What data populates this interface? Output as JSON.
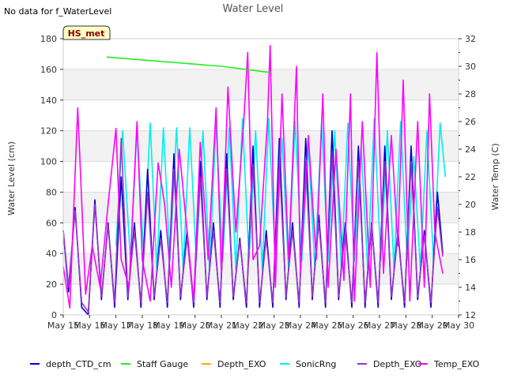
{
  "chart_data": {
    "type": "line",
    "title": "Water Level",
    "no_data_note": "No data for f_WaterLevel",
    "station_badge": "HS_met",
    "ylabel_left": "Water Level (cm)",
    "ylabel_right": "Water Temp (C)",
    "ylim_left": [
      0,
      180
    ],
    "ylim_right": [
      12,
      32
    ],
    "y_ticks_left": [
      "0",
      "20",
      "40",
      "60",
      "80",
      "100",
      "120",
      "140",
      "160",
      "180"
    ],
    "y_ticks_right": [
      "12",
      "14",
      "16",
      "18",
      "20",
      "22",
      "24",
      "26",
      "28",
      "30",
      "32"
    ],
    "x_ticks": [
      "May 15",
      "May 16",
      "May 17",
      "May 18",
      "May 19",
      "May 20",
      "May 21",
      "May 22",
      "May 23",
      "May 24",
      "May 25",
      "May 26",
      "May 27",
      "May 28",
      "May 29",
      "May 30"
    ],
    "xlim_days": [
      0,
      15
    ],
    "series": [
      {
        "name": "depth_CTD_cm",
        "axis": "left",
        "color": "#0000cc",
        "x": [
          0.0,
          0.2,
          0.45,
          0.7,
          0.95,
          1.2,
          1.45,
          1.7,
          1.95,
          2.2,
          2.45,
          2.7,
          2.95,
          3.2,
          3.45,
          3.7,
          3.95,
          4.2,
          4.45,
          4.7,
          4.95,
          5.2,
          5.45,
          5.7,
          5.95,
          6.2,
          6.45,
          6.7,
          6.95,
          7.2,
          7.45,
          7.7,
          7.95,
          8.2,
          8.45,
          8.7,
          8.95,
          9.2,
          9.45,
          9.7,
          9.95,
          10.2,
          10.45,
          10.7,
          10.95,
          11.2,
          11.45,
          11.7,
          11.95,
          12.2,
          12.45,
          12.7,
          12.95,
          13.2,
          13.45,
          13.7,
          13.95,
          14.2,
          14.4
        ],
        "values": [
          55,
          15,
          70,
          5,
          0,
          75,
          10,
          60,
          5,
          90,
          10,
          60,
          5,
          95,
          10,
          55,
          5,
          105,
          10,
          55,
          5,
          100,
          10,
          60,
          5,
          105,
          10,
          50,
          5,
          110,
          5,
          55,
          5,
          115,
          10,
          60,
          5,
          115,
          10,
          65,
          5,
          120,
          10,
          60,
          5,
          110,
          5,
          60,
          5,
          110,
          10,
          55,
          5,
          110,
          10,
          55,
          5,
          80,
          40
        ]
      },
      {
        "name": "Staff Gauge",
        "axis": "left",
        "color": "#22ee22",
        "x": [
          1.65,
          6.0,
          7.85
        ],
        "values": [
          168,
          162,
          158
        ]
      },
      {
        "name": "Depth_EXO",
        "axis": "left",
        "color": "#ffaa00",
        "x": [],
        "values": []
      },
      {
        "name": "SonicRng",
        "axis": "left",
        "color": "#00eeee",
        "x": [
          2.0,
          2.25,
          2.55,
          2.8,
          3.05,
          3.3,
          3.55,
          3.8,
          4.05,
          4.3,
          4.55,
          4.8,
          5.05,
          5.3,
          5.55,
          5.8,
          6.05,
          6.3,
          6.55,
          6.8,
          7.05,
          7.3,
          7.55,
          7.8,
          8.05,
          8.3,
          8.55,
          8.8,
          9.05,
          9.3,
          9.55,
          9.8,
          10.05,
          10.3,
          10.55,
          10.8,
          11.05,
          11.3,
          11.55,
          11.8,
          12.05,
          12.3,
          12.55,
          12.8,
          13.05,
          13.3,
          13.55,
          13.8,
          14.05,
          14.3,
          14.5
        ],
        "values": [
          45,
          120,
          35,
          122,
          40,
          125,
          30,
          122,
          35,
          122,
          30,
          122,
          35,
          120,
          30,
          125,
          35,
          122,
          30,
          128,
          35,
          120,
          30,
          128,
          35,
          115,
          30,
          126,
          35,
          110,
          30,
          126,
          35,
          120,
          30,
          125,
          35,
          110,
          30,
          128,
          35,
          120,
          30,
          126,
          35,
          103,
          30,
          120,
          35,
          125,
          90
        ]
      },
      {
        "name": "Depth_EXO",
        "axis": "left",
        "color": "#9933cc",
        "x": [
          0.0,
          0.2,
          0.45,
          0.7,
          0.95,
          1.2,
          1.45,
          1.7,
          1.95,
          2.2,
          2.45,
          2.7,
          2.95,
          3.2,
          3.45,
          3.7,
          3.95,
          4.2,
          4.45,
          4.7,
          4.95,
          5.2,
          5.45,
          5.7,
          5.95,
          6.2,
          6.45,
          6.7,
          6.95,
          7.2,
          7.45,
          7.7,
          7.95,
          8.2,
          8.45,
          8.7,
          8.95,
          9.2,
          9.45,
          9.7,
          9.95,
          10.2,
          10.45,
          10.7,
          10.95,
          11.2,
          11.45,
          11.7,
          11.95,
          12.2,
          12.45,
          12.7,
          12.95,
          13.2,
          13.45,
          13.7,
          13.95,
          14.2,
          14.4
        ],
        "values": [
          55,
          18,
          68,
          8,
          2,
          72,
          12,
          58,
          8,
          115,
          12,
          55,
          8,
          80,
          12,
          50,
          8,
          95,
          12,
          50,
          8,
          90,
          12,
          55,
          8,
          95,
          12,
          48,
          8,
          98,
          8,
          50,
          8,
          100,
          12,
          55,
          8,
          100,
          12,
          60,
          8,
          105,
          12,
          55,
          8,
          100,
          8,
          58,
          8,
          100,
          12,
          52,
          8,
          100,
          12,
          52,
          8,
          70,
          38
        ]
      },
      {
        "name": "Temp_EXO",
        "axis": "right",
        "color": "#ff00ff",
        "x": [
          0.0,
          0.25,
          0.55,
          0.85,
          1.1,
          1.4,
          1.7,
          2.0,
          2.2,
          2.5,
          2.8,
          3.0,
          3.3,
          3.6,
          3.85,
          4.1,
          4.4,
          4.7,
          4.95,
          5.2,
          5.5,
          5.8,
          6.0,
          6.25,
          6.55,
          6.85,
          7.0,
          7.2,
          7.45,
          7.75,
          7.85,
          8.05,
          8.3,
          8.55,
          8.85,
          9.0,
          9.3,
          9.6,
          9.85,
          10.05,
          10.35,
          10.65,
          10.9,
          11.05,
          11.35,
          11.65,
          11.9,
          12.15,
          12.45,
          12.7,
          12.9,
          13.15,
          13.45,
          13.7,
          13.9,
          14.1,
          14.4
        ],
        "values": [
          15.5,
          12.5,
          27,
          13.5,
          17,
          14,
          20,
          25.5,
          16,
          14,
          26,
          16,
          13,
          23,
          20,
          14,
          24,
          18,
          13,
          24.5,
          16,
          27,
          15,
          28.5,
          18,
          26,
          31,
          16,
          17,
          26,
          31.5,
          14,
          28,
          16,
          30,
          15,
          25,
          16,
          28,
          14,
          24,
          14.5,
          28,
          13,
          26,
          14,
          31,
          15,
          25,
          17,
          29,
          13,
          26,
          14,
          28,
          18,
          15
        ]
      }
    ]
  },
  "legend": {
    "items": [
      {
        "label": "depth_CTD_cm",
        "color": "#0000cc"
      },
      {
        "label": "Staff Gauge",
        "color": "#22ee22"
      },
      {
        "label": "Depth_EXO",
        "color": "#ffaa00"
      },
      {
        "label": "SonicRng",
        "color": "#00eeee"
      },
      {
        "label": "Depth_EXO",
        "color": "#9933cc"
      },
      {
        "label": "Temp_EXO",
        "color": "#ff00ff"
      }
    ]
  }
}
